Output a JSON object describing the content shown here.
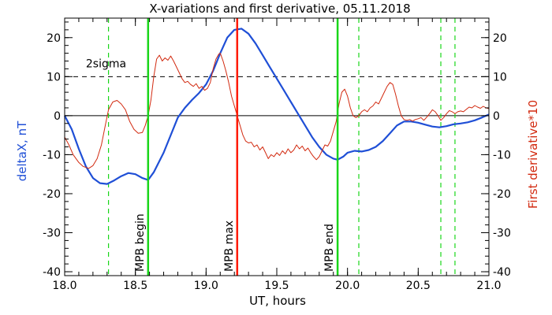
{
  "chart_data": {
    "type": "line",
    "title": "X-variations and first derivative, 05.11.2018",
    "xlabel": "UT, hours",
    "ylabel_left": "deltaX, nT",
    "ylabel_right": "First derivative*10",
    "xlim": [
      18.0,
      21.0
    ],
    "ylim": [
      -41,
      25
    ],
    "xticks": [
      "18.0",
      "18.5",
      "19.0",
      "19.5",
      "20.0",
      "20.5",
      "21.0"
    ],
    "xtick_values": [
      18.0,
      18.5,
      19.0,
      19.5,
      20.0,
      20.5,
      21.0
    ],
    "yticks": [
      "20",
      "10",
      "0",
      "-10",
      "-20",
      "-30",
      "-40"
    ],
    "ytick_values": [
      20,
      10,
      0,
      -10,
      -20,
      -30,
      -40
    ],
    "colors": {
      "deltaX": "#1f4fd6",
      "derivative": "#d22a10",
      "mpb": "#19d619",
      "mpb_max": "#ff1a00",
      "dashed": "#19d619"
    },
    "threshold": {
      "label": "2sigma",
      "value": 10
    },
    "vertical_lines": [
      {
        "x": 18.59,
        "label": "MPB begin",
        "style": "solid",
        "color": "#19d619"
      },
      {
        "x": 19.22,
        "label": "MPB max",
        "style": "solid",
        "color": "#ff1a00"
      },
      {
        "x": 19.93,
        "label": "MPB end",
        "style": "solid",
        "color": "#19d619"
      }
    ],
    "dashed_lines": [
      18.31,
      20.08,
      20.66,
      20.76
    ],
    "series": [
      {
        "name": "deltaX, nT",
        "color": "#1f4fd6",
        "points": [
          [
            18.0,
            0.0
          ],
          [
            18.05,
            -3.5
          ],
          [
            18.1,
            -8.5
          ],
          [
            18.15,
            -13.0
          ],
          [
            18.2,
            -16.0
          ],
          [
            18.25,
            -17.3
          ],
          [
            18.3,
            -17.5
          ],
          [
            18.35,
            -16.6
          ],
          [
            18.4,
            -15.5
          ],
          [
            18.45,
            -14.7
          ],
          [
            18.5,
            -15.0
          ],
          [
            18.55,
            -16.0
          ],
          [
            18.59,
            -16.5
          ],
          [
            18.63,
            -14.5
          ],
          [
            18.7,
            -9.5
          ],
          [
            18.75,
            -5.0
          ],
          [
            18.8,
            -0.5
          ],
          [
            18.85,
            2.0
          ],
          [
            18.9,
            4.0
          ],
          [
            18.95,
            5.8
          ],
          [
            19.0,
            8.0
          ],
          [
            19.05,
            11.5
          ],
          [
            19.1,
            16.0
          ],
          [
            19.15,
            20.0
          ],
          [
            19.2,
            22.0
          ],
          [
            19.25,
            22.3
          ],
          [
            19.3,
            21.0
          ],
          [
            19.35,
            18.5
          ],
          [
            19.4,
            15.5
          ],
          [
            19.45,
            12.5
          ],
          [
            19.5,
            9.5
          ],
          [
            19.55,
            6.5
          ],
          [
            19.6,
            3.5
          ],
          [
            19.65,
            0.5
          ],
          [
            19.7,
            -2.5
          ],
          [
            19.75,
            -5.5
          ],
          [
            19.8,
            -8.0
          ],
          [
            19.85,
            -10.0
          ],
          [
            19.9,
            -11.0
          ],
          [
            19.93,
            -11.3
          ],
          [
            19.97,
            -10.5
          ],
          [
            20.0,
            -9.5
          ],
          [
            20.05,
            -9.0
          ],
          [
            20.1,
            -9.2
          ],
          [
            20.15,
            -8.8
          ],
          [
            20.2,
            -8.0
          ],
          [
            20.25,
            -6.5
          ],
          [
            20.3,
            -4.5
          ],
          [
            20.35,
            -2.5
          ],
          [
            20.4,
            -1.5
          ],
          [
            20.45,
            -1.5
          ],
          [
            20.5,
            -1.8
          ],
          [
            20.55,
            -2.3
          ],
          [
            20.6,
            -2.8
          ],
          [
            20.65,
            -3.0
          ],
          [
            20.7,
            -2.7
          ],
          [
            20.75,
            -2.2
          ],
          [
            20.8,
            -2.0
          ],
          [
            20.85,
            -1.7
          ],
          [
            20.9,
            -1.2
          ],
          [
            20.95,
            -0.5
          ],
          [
            21.0,
            0.3
          ]
        ]
      },
      {
        "name": "First derivative*10",
        "color": "#d22a10",
        "points": [
          [
            18.0,
            -5.5
          ],
          [
            18.03,
            -7.5
          ],
          [
            18.06,
            -10.0
          ],
          [
            18.1,
            -12.0
          ],
          [
            18.13,
            -13.0
          ],
          [
            18.17,
            -13.5
          ],
          [
            18.2,
            -12.8
          ],
          [
            18.23,
            -11.0
          ],
          [
            18.26,
            -7.5
          ],
          [
            18.29,
            -2.0
          ],
          [
            18.31,
            1.5
          ],
          [
            18.34,
            3.5
          ],
          [
            18.37,
            3.9
          ],
          [
            18.4,
            3.0
          ],
          [
            18.43,
            1.5
          ],
          [
            18.46,
            -1.5
          ],
          [
            18.49,
            -3.5
          ],
          [
            18.52,
            -4.5
          ],
          [
            18.55,
            -4.3
          ],
          [
            18.57,
            -2.5
          ],
          [
            18.59,
            0.0
          ],
          [
            18.61,
            4.0
          ],
          [
            18.63,
            10.0
          ],
          [
            18.65,
            14.5
          ],
          [
            18.67,
            15.5
          ],
          [
            18.69,
            14.0
          ],
          [
            18.71,
            14.8
          ],
          [
            18.73,
            14.2
          ],
          [
            18.75,
            15.3
          ],
          [
            18.77,
            14.0
          ],
          [
            18.79,
            12.5
          ],
          [
            18.81,
            11.0
          ],
          [
            18.83,
            9.5
          ],
          [
            18.85,
            8.5
          ],
          [
            18.87,
            8.8
          ],
          [
            18.89,
            8.0
          ],
          [
            18.91,
            7.5
          ],
          [
            18.93,
            8.2
          ],
          [
            18.95,
            7.0
          ],
          [
            18.97,
            7.5
          ],
          [
            18.99,
            6.5
          ],
          [
            19.01,
            7.0
          ],
          [
            19.03,
            8.5
          ],
          [
            19.05,
            12.0
          ],
          [
            19.07,
            14.5
          ],
          [
            19.09,
            15.8
          ],
          [
            19.1,
            16.0
          ],
          [
            19.12,
            14.0
          ],
          [
            19.14,
            11.5
          ],
          [
            19.16,
            8.5
          ],
          [
            19.18,
            5.0
          ],
          [
            19.2,
            2.5
          ],
          [
            19.22,
            0.0
          ],
          [
            19.24,
            -2.5
          ],
          [
            19.26,
            -5.0
          ],
          [
            19.28,
            -6.5
          ],
          [
            19.3,
            -7.0
          ],
          [
            19.32,
            -6.8
          ],
          [
            19.34,
            -8.0
          ],
          [
            19.36,
            -7.5
          ],
          [
            19.38,
            -8.8
          ],
          [
            19.4,
            -8.0
          ],
          [
            19.42,
            -9.5
          ],
          [
            19.44,
            -11.0
          ],
          [
            19.46,
            -10.0
          ],
          [
            19.48,
            -10.5
          ],
          [
            19.5,
            -9.5
          ],
          [
            19.52,
            -10.2
          ],
          [
            19.54,
            -9.0
          ],
          [
            19.56,
            -9.8
          ],
          [
            19.58,
            -8.5
          ],
          [
            19.6,
            -9.5
          ],
          [
            19.62,
            -8.8
          ],
          [
            19.64,
            -7.5
          ],
          [
            19.66,
            -8.5
          ],
          [
            19.68,
            -7.8
          ],
          [
            19.7,
            -9.0
          ],
          [
            19.72,
            -8.3
          ],
          [
            19.74,
            -9.5
          ],
          [
            19.76,
            -10.5
          ],
          [
            19.78,
            -11.3
          ],
          [
            19.8,
            -10.5
          ],
          [
            19.82,
            -9.0
          ],
          [
            19.84,
            -7.5
          ],
          [
            19.86,
            -7.8
          ],
          [
            19.88,
            -6.5
          ],
          [
            19.9,
            -4.0
          ],
          [
            19.92,
            -1.5
          ],
          [
            19.94,
            3.0
          ],
          [
            19.96,
            6.0
          ],
          [
            19.98,
            6.8
          ],
          [
            20.0,
            5.0
          ],
          [
            20.02,
            2.0
          ],
          [
            20.04,
            0.0
          ],
          [
            20.06,
            -0.5
          ],
          [
            20.08,
            0.0
          ],
          [
            20.1,
            1.0
          ],
          [
            20.12,
            1.5
          ],
          [
            20.14,
            1.0
          ],
          [
            20.16,
            2.0
          ],
          [
            20.18,
            2.5
          ],
          [
            20.2,
            3.5
          ],
          [
            20.22,
            3.0
          ],
          [
            20.24,
            4.5
          ],
          [
            20.26,
            6.0
          ],
          [
            20.28,
            7.5
          ],
          [
            20.3,
            8.5
          ],
          [
            20.32,
            8.0
          ],
          [
            20.34,
            5.5
          ],
          [
            20.36,
            2.5
          ],
          [
            20.38,
            0.0
          ],
          [
            20.4,
            -1.0
          ],
          [
            20.42,
            -1.2
          ],
          [
            20.44,
            -1.0
          ],
          [
            20.46,
            -1.4
          ],
          [
            20.48,
            -1.0
          ],
          [
            20.5,
            -0.8
          ],
          [
            20.52,
            -0.5
          ],
          [
            20.54,
            -1.2
          ],
          [
            20.56,
            -0.4
          ],
          [
            20.58,
            0.5
          ],
          [
            20.6,
            1.5
          ],
          [
            20.62,
            1.0
          ],
          [
            20.64,
            0.0
          ],
          [
            20.66,
            -1.2
          ],
          [
            20.68,
            -0.5
          ],
          [
            20.7,
            0.5
          ],
          [
            20.72,
            1.3
          ],
          [
            20.74,
            1.0
          ],
          [
            20.76,
            0.5
          ],
          [
            20.78,
            1.0
          ],
          [
            20.8,
            1.2
          ],
          [
            20.82,
            1.0
          ],
          [
            20.84,
            1.6
          ],
          [
            20.86,
            2.2
          ],
          [
            20.88,
            2.0
          ],
          [
            20.9,
            2.6
          ],
          [
            20.92,
            2.2
          ],
          [
            20.94,
            1.9
          ],
          [
            20.96,
            2.4
          ],
          [
            20.98,
            2.0
          ],
          [
            21.0,
            1.8
          ]
        ]
      }
    ]
  }
}
